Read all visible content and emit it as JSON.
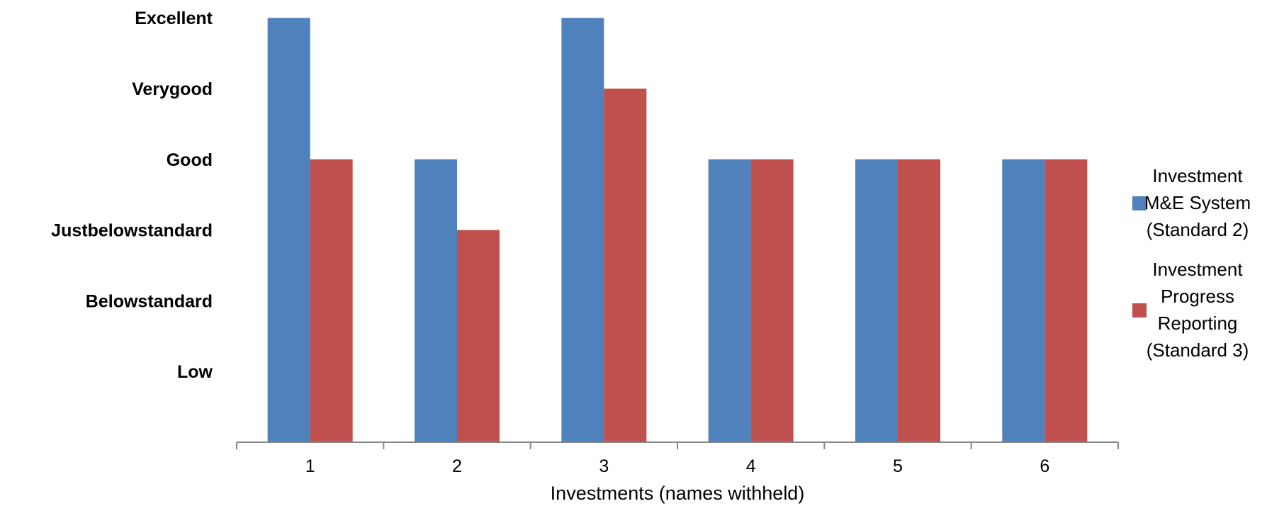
{
  "chart_data": {
    "type": "bar",
    "categories": [
      "1",
      "2",
      "3",
      "4",
      "5",
      "6"
    ],
    "y_levels": [
      "Low",
      "Below\u0002standard",
      "Just\u0002below\u0002standard",
      "Good",
      "Very\u0002good",
      "Excellent"
    ],
    "ylim": [
      0,
      6
    ],
    "xlabel": "Investments (names withheld)",
    "ylabel": "",
    "grid": false,
    "legend_position": "right",
    "series": [
      {
        "name": "Investment M&E System (Standard 2)",
        "legend_lines": [
          "Investment",
          "M&E System",
          "(Standard 2)"
        ],
        "color": "#4F81BD",
        "values": [
          6,
          4,
          6,
          4,
          4,
          4
        ]
      },
      {
        "name": "Investment Progress Reporting (Standard 3)",
        "legend_lines": [
          "Investment",
          "Progress",
          "Reporting",
          "(Standard 3)"
        ],
        "color": "#C0504D",
        "values": [
          4,
          3,
          5,
          4,
          4,
          4
        ]
      }
    ]
  }
}
